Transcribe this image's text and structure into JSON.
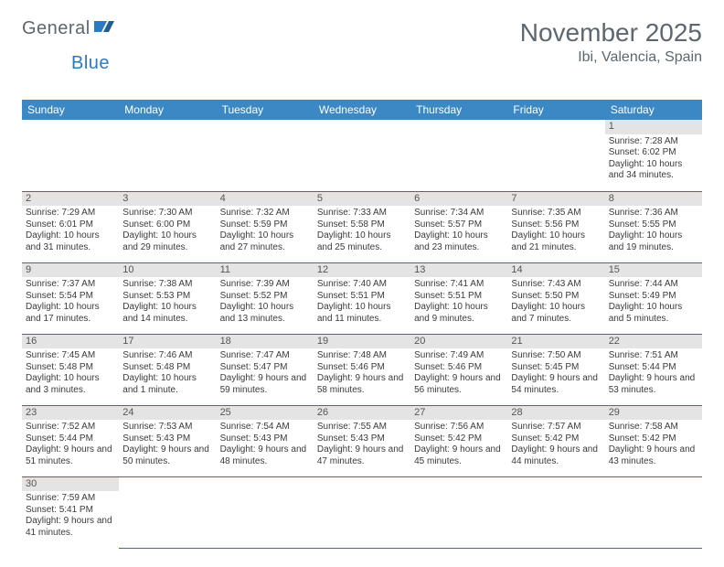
{
  "brand": {
    "part1": "General",
    "part2": "Blue"
  },
  "title": "November 2025",
  "location": "Ibi, Valencia, Spain",
  "colors": {
    "header_bg": "#3b88c4",
    "header_text": "#ffffff",
    "daynum_bg": "#e4e4e4",
    "row_divider": "#2a6fb0",
    "text": "#3a3a3a",
    "title_text": "#5c6770",
    "brand_blue": "#2a7bbf"
  },
  "weekdays": [
    "Sunday",
    "Monday",
    "Tuesday",
    "Wednesday",
    "Thursday",
    "Friday",
    "Saturday"
  ],
  "weeks": [
    [
      null,
      null,
      null,
      null,
      null,
      null,
      {
        "n": "1",
        "sunrise": "7:28 AM",
        "sunset": "6:02 PM",
        "daylight": "10 hours and 34 minutes."
      }
    ],
    [
      {
        "n": "2",
        "sunrise": "7:29 AM",
        "sunset": "6:01 PM",
        "daylight": "10 hours and 31 minutes."
      },
      {
        "n": "3",
        "sunrise": "7:30 AM",
        "sunset": "6:00 PM",
        "daylight": "10 hours and 29 minutes."
      },
      {
        "n": "4",
        "sunrise": "7:32 AM",
        "sunset": "5:59 PM",
        "daylight": "10 hours and 27 minutes."
      },
      {
        "n": "5",
        "sunrise": "7:33 AM",
        "sunset": "5:58 PM",
        "daylight": "10 hours and 25 minutes."
      },
      {
        "n": "6",
        "sunrise": "7:34 AM",
        "sunset": "5:57 PM",
        "daylight": "10 hours and 23 minutes."
      },
      {
        "n": "7",
        "sunrise": "7:35 AM",
        "sunset": "5:56 PM",
        "daylight": "10 hours and 21 minutes."
      },
      {
        "n": "8",
        "sunrise": "7:36 AM",
        "sunset": "5:55 PM",
        "daylight": "10 hours and 19 minutes."
      }
    ],
    [
      {
        "n": "9",
        "sunrise": "7:37 AM",
        "sunset": "5:54 PM",
        "daylight": "10 hours and 17 minutes."
      },
      {
        "n": "10",
        "sunrise": "7:38 AM",
        "sunset": "5:53 PM",
        "daylight": "10 hours and 14 minutes."
      },
      {
        "n": "11",
        "sunrise": "7:39 AM",
        "sunset": "5:52 PM",
        "daylight": "10 hours and 13 minutes."
      },
      {
        "n": "12",
        "sunrise": "7:40 AM",
        "sunset": "5:51 PM",
        "daylight": "10 hours and 11 minutes."
      },
      {
        "n": "13",
        "sunrise": "7:41 AM",
        "sunset": "5:51 PM",
        "daylight": "10 hours and 9 minutes."
      },
      {
        "n": "14",
        "sunrise": "7:43 AM",
        "sunset": "5:50 PM",
        "daylight": "10 hours and 7 minutes."
      },
      {
        "n": "15",
        "sunrise": "7:44 AM",
        "sunset": "5:49 PM",
        "daylight": "10 hours and 5 minutes."
      }
    ],
    [
      {
        "n": "16",
        "sunrise": "7:45 AM",
        "sunset": "5:48 PM",
        "daylight": "10 hours and 3 minutes."
      },
      {
        "n": "17",
        "sunrise": "7:46 AM",
        "sunset": "5:48 PM",
        "daylight": "10 hours and 1 minute."
      },
      {
        "n": "18",
        "sunrise": "7:47 AM",
        "sunset": "5:47 PM",
        "daylight": "9 hours and 59 minutes."
      },
      {
        "n": "19",
        "sunrise": "7:48 AM",
        "sunset": "5:46 PM",
        "daylight": "9 hours and 58 minutes."
      },
      {
        "n": "20",
        "sunrise": "7:49 AM",
        "sunset": "5:46 PM",
        "daylight": "9 hours and 56 minutes."
      },
      {
        "n": "21",
        "sunrise": "7:50 AM",
        "sunset": "5:45 PM",
        "daylight": "9 hours and 54 minutes."
      },
      {
        "n": "22",
        "sunrise": "7:51 AM",
        "sunset": "5:44 PM",
        "daylight": "9 hours and 53 minutes."
      }
    ],
    [
      {
        "n": "23",
        "sunrise": "7:52 AM",
        "sunset": "5:44 PM",
        "daylight": "9 hours and 51 minutes."
      },
      {
        "n": "24",
        "sunrise": "7:53 AM",
        "sunset": "5:43 PM",
        "daylight": "9 hours and 50 minutes."
      },
      {
        "n": "25",
        "sunrise": "7:54 AM",
        "sunset": "5:43 PM",
        "daylight": "9 hours and 48 minutes."
      },
      {
        "n": "26",
        "sunrise": "7:55 AM",
        "sunset": "5:43 PM",
        "daylight": "9 hours and 47 minutes."
      },
      {
        "n": "27",
        "sunrise": "7:56 AM",
        "sunset": "5:42 PM",
        "daylight": "9 hours and 45 minutes."
      },
      {
        "n": "28",
        "sunrise": "7:57 AM",
        "sunset": "5:42 PM",
        "daylight": "9 hours and 44 minutes."
      },
      {
        "n": "29",
        "sunrise": "7:58 AM",
        "sunset": "5:42 PM",
        "daylight": "9 hours and 43 minutes."
      }
    ],
    [
      {
        "n": "30",
        "sunrise": "7:59 AM",
        "sunset": "5:41 PM",
        "daylight": "9 hours and 41 minutes."
      },
      null,
      null,
      null,
      null,
      null,
      null
    ]
  ],
  "labels": {
    "sunrise": "Sunrise:",
    "sunset": "Sunset:",
    "daylight": "Daylight:"
  }
}
